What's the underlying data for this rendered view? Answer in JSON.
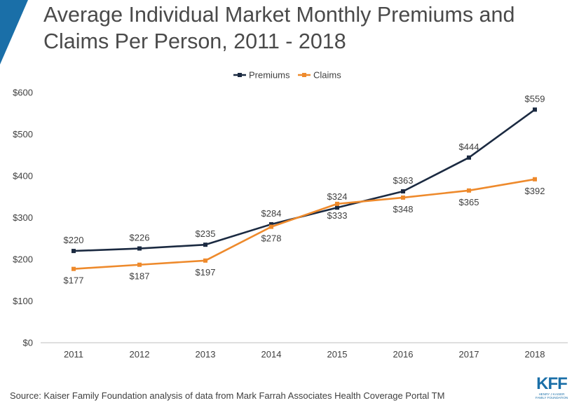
{
  "title": {
    "line1": "Average Individual Market Monthly Premiums and",
    "line2": "Claims Per Person, 2011 - 2018"
  },
  "chart_data": {
    "type": "line",
    "title": "Average Individual Market Monthly Premiums and Claims Per Person, 2011 - 2018",
    "x": [
      "2011",
      "2012",
      "2013",
      "2014",
      "2015",
      "2016",
      "2017",
      "2018"
    ],
    "series": [
      {
        "name": "Premiums",
        "color": "#1b2a41",
        "values": [
          220,
          226,
          235,
          284,
          324,
          363,
          444,
          559
        ],
        "labels": [
          "$220",
          "$226",
          "$235",
          "$284",
          "$324",
          "$363",
          "$444",
          "$559"
        ],
        "label_position": [
          "above",
          "above",
          "above",
          "above",
          "above",
          "above",
          "above",
          "above"
        ]
      },
      {
        "name": "Claims",
        "color": "#ee8a2c",
        "values": [
          177,
          187,
          197,
          278,
          333,
          348,
          365,
          392
        ],
        "labels": [
          "$177",
          "$187",
          "$197",
          "$278",
          "$333",
          "$348",
          "$365",
          "$392"
        ],
        "label_position": [
          "below",
          "below",
          "below",
          "below",
          "below",
          "below",
          "below",
          "below"
        ]
      }
    ],
    "y_ticks": [
      0,
      100,
      200,
      300,
      400,
      500,
      600
    ],
    "y_tick_labels": [
      "$0",
      "$100",
      "$200",
      "$300",
      "$400",
      "$500",
      "$600"
    ],
    "ylim": [
      0,
      600
    ],
    "xlabel": "",
    "ylabel": "",
    "legend_position": "top-center",
    "grid": false
  },
  "source": "Source: Kaiser Family Foundation analysis of data from Mark Farrah Associates Health Coverage Portal TM",
  "logo": {
    "mark": "KFF",
    "line1": "HENRY J KAISER",
    "line2": "FAMILY FOUNDATION"
  },
  "colors": {
    "accent": "#1a6fa8",
    "premiums": "#1b2a41",
    "claims": "#ee8a2c"
  }
}
